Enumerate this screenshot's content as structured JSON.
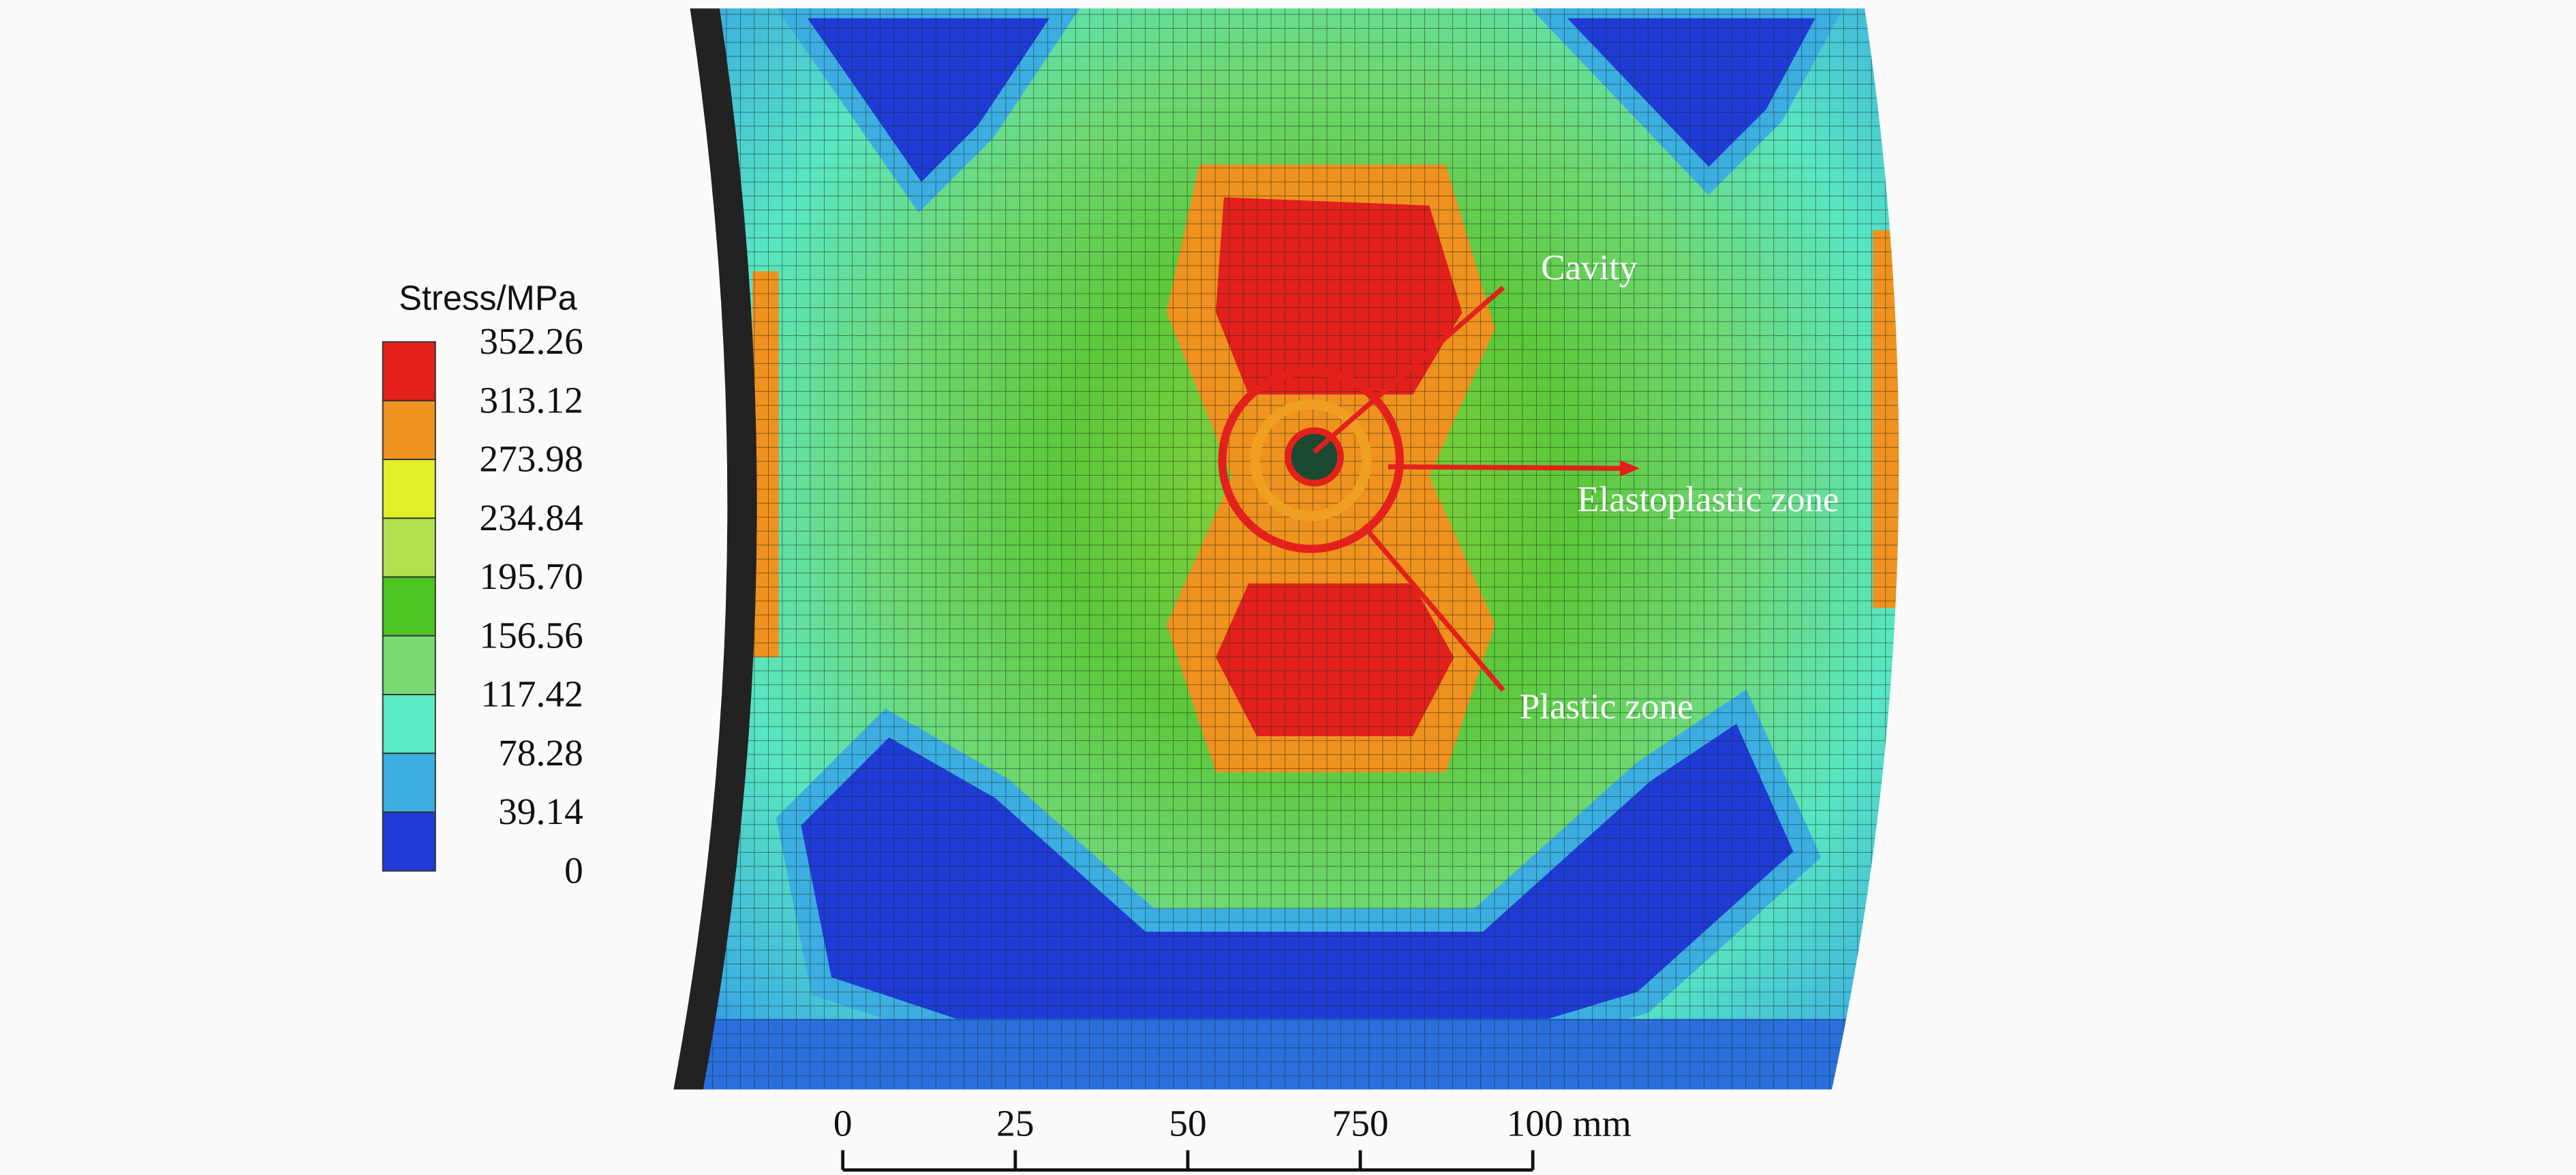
{
  "legend": {
    "title": "Stress/MPa",
    "labels": [
      "352.26",
      "313.12",
      "273.98",
      "234.84",
      "195.70",
      "156.56",
      "117.42",
      "78.28",
      "39.14",
      "0"
    ],
    "colors": [
      "#e3201b",
      "#f0921f",
      "#e2ef28",
      "#b0e04c",
      "#4cc421",
      "#79da74",
      "#5aeac4",
      "#3caee2",
      "#1f3bd6"
    ]
  },
  "annotations": {
    "cavity": "Cavity",
    "elastoplastic": "Elastoplastic zone",
    "plastic": "Plastic zone"
  },
  "scale_bar": {
    "labels": [
      "0",
      "25",
      "50",
      "750",
      "100 mm"
    ]
  }
}
